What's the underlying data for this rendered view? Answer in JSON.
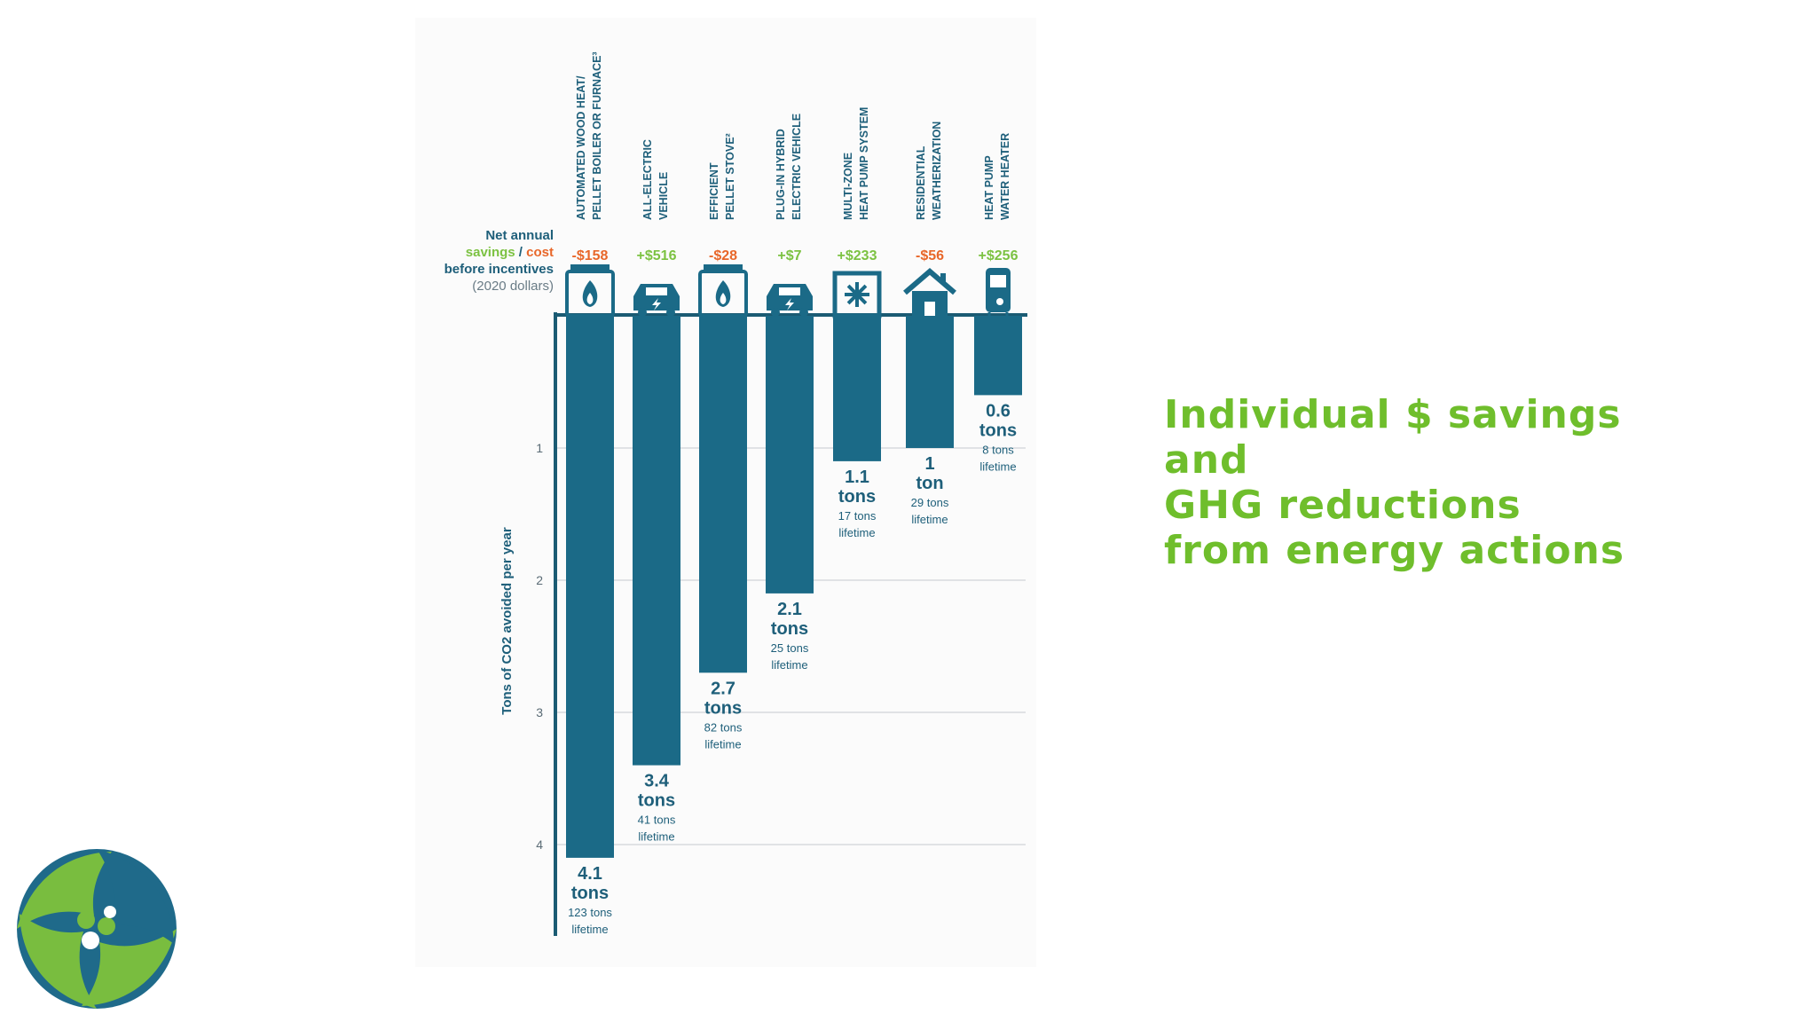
{
  "heading": {
    "lines": [
      "Individual $ savings",
      "and",
      "GHG reductions",
      "from energy actions"
    ]
  },
  "legend": {
    "line1": "Net annual",
    "savings_word": "savings",
    "separator": " / ",
    "cost_word": "cost",
    "line3": "before incentives",
    "line4": "(2020 dollars)"
  },
  "colors": {
    "bar": "#1b6a87",
    "axis": "#1b5b73",
    "savings_green": "#7cc242",
    "cost_orange": "#e8672a",
    "heading_green": "#6fbe2c",
    "logo_green": "#79bd3f",
    "logo_blue": "#1f6a8a"
  },
  "chart_data": {
    "type": "bar",
    "orientation": "vertical-downward",
    "ylabel": "Tons of CO2 avoided per year",
    "ylim": [
      0,
      4.6
    ],
    "yticks": [
      "1",
      "2",
      "3",
      "4"
    ],
    "grid": true,
    "categories": [
      "AUTOMATED WOOD HEAT/ PELLET BOILER OR FURNACE³",
      "ALL-ELECTRIC VEHICLE",
      "EFFICIENT PELLET STOVE²",
      "PLUG-IN HYBRID ELECTRIC VEHICLE",
      "MULTI-ZONE HEAT PUMP SYSTEM",
      "RESIDENTIAL WEATHERIZATION",
      "HEAT PUMP WATER HEATER"
    ],
    "bars": [
      {
        "label_lines": [
          "AUTOMATED WOOD HEAT/",
          "PELLET BOILER OR FURNACE³"
        ],
        "value": 4.1,
        "value_text": "4.1",
        "unit": "tons",
        "lifetime": "123 tons",
        "lifetime_word": "lifetime",
        "net_savings": -158,
        "savings_text": "-$158",
        "icon": "wood-boiler-icon"
      },
      {
        "label_lines": [
          "ALL-ELECTRIC",
          "VEHICLE"
        ],
        "value": 3.4,
        "value_text": "3.4",
        "unit": "tons",
        "lifetime": "41 tons",
        "lifetime_word": "lifetime",
        "net_savings": 516,
        "savings_text": "+$516",
        "icon": "electric-car-icon"
      },
      {
        "label_lines": [
          "EFFICIENT",
          "PELLET STOVE²"
        ],
        "value": 2.7,
        "value_text": "2.7",
        "unit": "tons",
        "lifetime": "82 tons",
        "lifetime_word": "lifetime",
        "net_savings": -28,
        "savings_text": "-$28",
        "icon": "pellet-stove-icon"
      },
      {
        "label_lines": [
          "PLUG-IN HYBRID",
          "ELECTRIC VEHICLE"
        ],
        "value": 2.1,
        "value_text": "2.1",
        "unit": "tons",
        "lifetime": "25 tons",
        "lifetime_word": "lifetime",
        "net_savings": 7,
        "savings_text": "+$7",
        "icon": "hybrid-car-icon"
      },
      {
        "label_lines": [
          "MULTI-ZONE",
          "HEAT PUMP SYSTEM"
        ],
        "value": 1.1,
        "value_text": "1.1",
        "unit": "tons",
        "lifetime": "17 tons",
        "lifetime_word": "lifetime",
        "net_savings": 233,
        "savings_text": "+$233",
        "icon": "heat-pump-icon"
      },
      {
        "label_lines": [
          "RESIDENTIAL",
          "WEATHERIZATION"
        ],
        "value": 1,
        "value_text": "1",
        "unit": "ton",
        "lifetime": "29 tons",
        "lifetime_word": "lifetime",
        "net_savings": -56,
        "savings_text": "-$56",
        "icon": "house-icon"
      },
      {
        "label_lines": [
          "HEAT PUMP",
          "WATER HEATER"
        ],
        "value": 0.6,
        "value_text": "0.6",
        "unit": "tons",
        "lifetime": "8 tons",
        "lifetime_word": "lifetime",
        "net_savings": 256,
        "savings_text": "+$256",
        "icon": "water-heater-icon"
      }
    ]
  }
}
